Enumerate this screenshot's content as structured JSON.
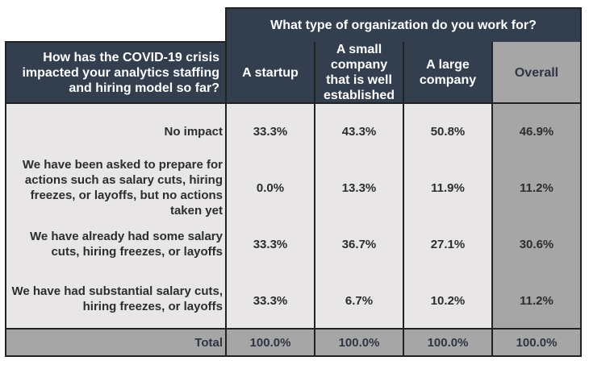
{
  "header": {
    "group_title": "What type of organization do you work for?",
    "question": "How has the COVID-19 crisis impacted your analytics staffing and hiring model so far?",
    "columns": [
      "A startup",
      "A small company that is well established",
      "A large company",
      "Overall"
    ]
  },
  "rows": [
    {
      "label": "No impact",
      "values": [
        "33.3%",
        "43.3%",
        "50.8%",
        "46.9%"
      ]
    },
    {
      "label": "We have been asked to prepare for actions such as salary cuts, hiring freezes, or layoffs, but no actions taken yet",
      "values": [
        "0.0%",
        "13.3%",
        "11.9%",
        "11.2%"
      ]
    },
    {
      "label": "We have already had some salary cuts, hiring freezes, or layoffs",
      "values": [
        "33.3%",
        "36.7%",
        "27.1%",
        "30.6%"
      ]
    },
    {
      "label": "We have had substantial salary cuts, hiring freezes, or layoffs",
      "values": [
        "33.3%",
        "6.7%",
        "10.2%",
        "11.2%"
      ]
    }
  ],
  "total": {
    "label": "Total",
    "values": [
      "100.0%",
      "100.0%",
      "100.0%",
      "100.0%"
    ]
  },
  "colors": {
    "header_bg": "#333f4f",
    "body_bg": "#e8e6e6",
    "overall_bg": "#a7a6a6"
  }
}
